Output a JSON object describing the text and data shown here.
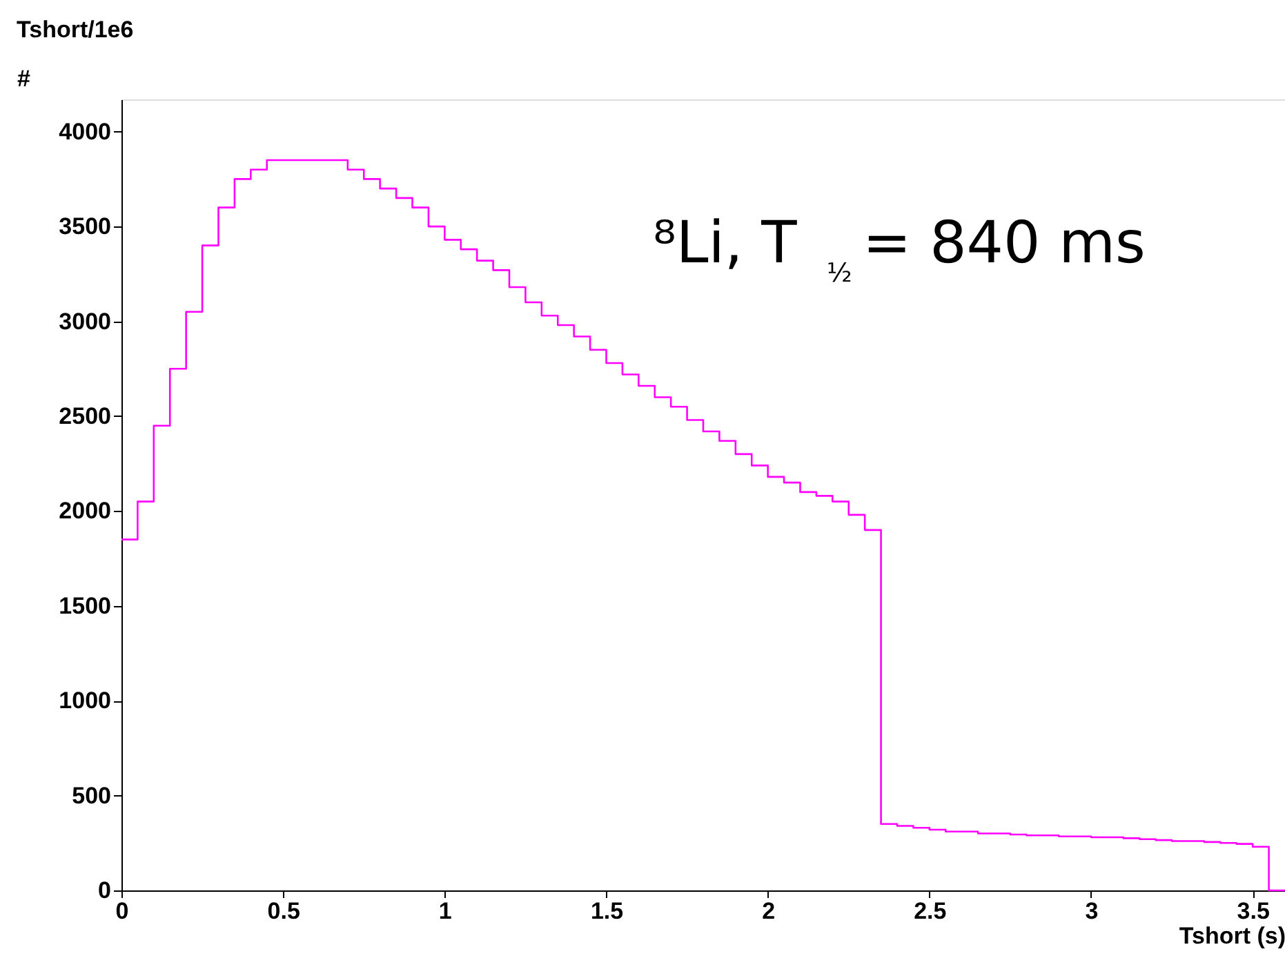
{
  "chart_data": {
    "type": "histogram",
    "title": "Tshort/1e6",
    "xlabel": "Tshort (s)",
    "ylabel": "#",
    "bins": [
      0,
      0.05,
      0.1,
      0.15,
      0.2,
      0.25,
      0.3,
      0.35,
      0.4,
      0.45,
      0.5,
      0.55,
      0.6,
      0.65,
      0.7,
      0.75,
      0.8,
      0.85,
      0.9,
      0.95,
      1.0,
      1.05,
      1.1,
      1.15,
      1.2,
      1.25,
      1.3,
      1.35,
      1.4,
      1.45,
      1.5,
      1.55,
      1.6,
      1.65,
      1.7,
      1.75,
      1.8,
      1.85,
      1.9,
      1.95,
      2.0,
      2.05,
      2.1,
      2.15,
      2.2,
      2.25,
      2.3,
      2.35,
      2.4,
      2.45,
      2.5,
      2.55,
      2.6,
      2.65,
      2.7,
      2.75,
      2.8,
      2.85,
      2.9,
      2.95,
      3.0,
      3.05,
      3.1,
      3.15,
      3.2,
      3.25,
      3.3,
      3.35,
      3.4,
      3.45,
      3.5,
      3.55,
      3.6
    ],
    "values": [
      1850,
      2050,
      2450,
      2750,
      3050,
      3400,
      3600,
      3750,
      3800,
      3850,
      3850,
      3850,
      3850,
      3850,
      3800,
      3750,
      3700,
      3650,
      3600,
      3500,
      3430,
      3380,
      3320,
      3270,
      3180,
      3100,
      3030,
      2980,
      2920,
      2850,
      2780,
      2720,
      2660,
      2600,
      2550,
      2480,
      2420,
      2370,
      2300,
      2240,
      2180,
      2150,
      2100,
      2080,
      2050,
      1980,
      1900,
      350,
      340,
      330,
      320,
      310,
      310,
      300,
      300,
      295,
      290,
      290,
      285,
      285,
      280,
      280,
      275,
      270,
      265,
      260,
      260,
      255,
      250,
      245,
      230,
      0
    ],
    "color": "#ff00ff",
    "xlim": [
      0,
      3.6
    ],
    "ylim": [
      0,
      4170
    ],
    "xticks": [
      0,
      0.5,
      1,
      1.5,
      2,
      2.5,
      3,
      3.5
    ],
    "yticks": [
      0,
      500,
      1000,
      1500,
      2000,
      2500,
      3000,
      3500,
      4000
    ],
    "grid": false,
    "annotations": [
      "⁸Li, T$_{½}$ = 840 ms"
    ]
  }
}
